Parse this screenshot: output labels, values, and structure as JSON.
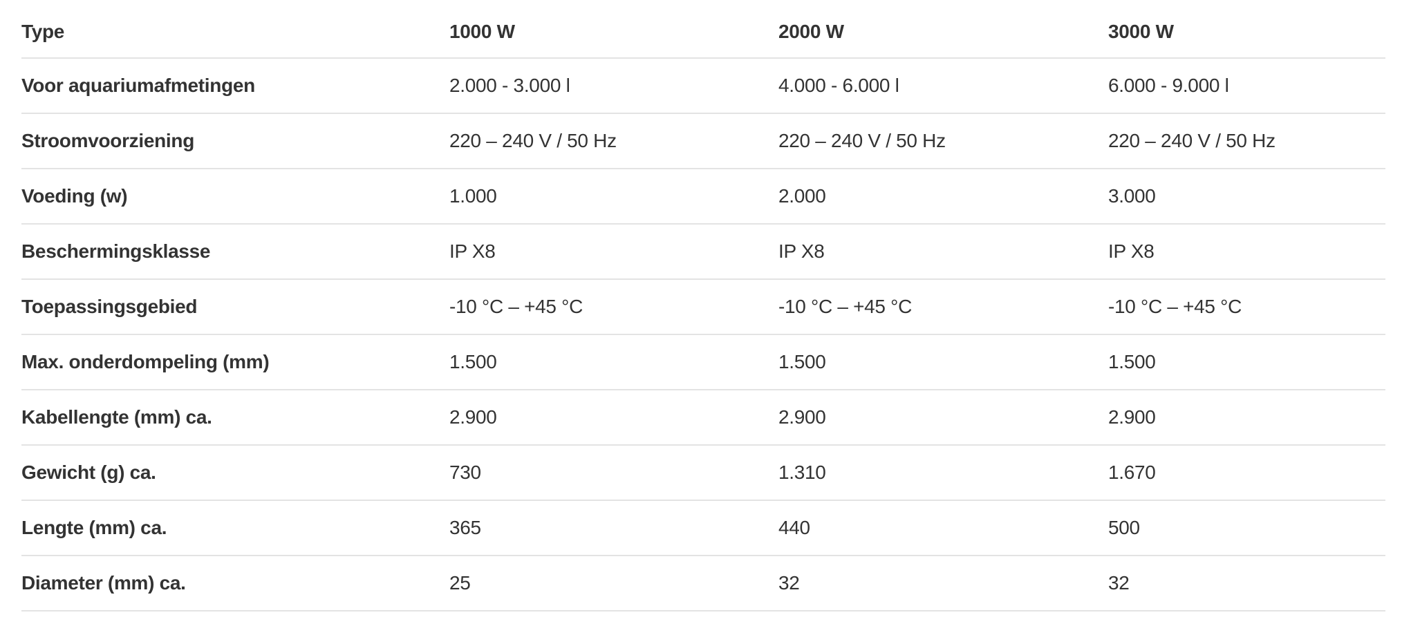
{
  "table": {
    "headers": [
      "Type",
      "1000 W",
      "2000 W",
      "3000 W"
    ],
    "rows": [
      {
        "label": "Voor aquariumafmetingen",
        "values": [
          "2.000 - 3.000 l",
          "4.000 - 6.000 l",
          "6.000 - 9.000 l"
        ]
      },
      {
        "label": "Stroomvoorziening",
        "values": [
          "220 – 240 V / 50 Hz",
          "220 – 240 V / 50 Hz",
          "220 – 240 V / 50 Hz"
        ]
      },
      {
        "label": "Voeding (w)",
        "values": [
          "1.000",
          "2.000",
          "3.000"
        ]
      },
      {
        "label": "Beschermingsklasse",
        "values": [
          "IP X8",
          "IP X8",
          "IP X8"
        ]
      },
      {
        "label": "Toepassingsgebied",
        "values": [
          "-10 °C – +45 °C",
          "-10 °C – +45 °C",
          "-10 °C – +45 °C"
        ]
      },
      {
        "label": "Max. onderdompeling (mm)",
        "values": [
          "1.500",
          "1.500",
          "1.500"
        ]
      },
      {
        "label": "Kabellengte (mm) ca.",
        "values": [
          "2.900",
          "2.900",
          "2.900"
        ]
      },
      {
        "label": "Gewicht (g) ca.",
        "values": [
          "730",
          "1.310",
          "1.670"
        ]
      },
      {
        "label": "Lengte (mm) ca.",
        "values": [
          "365",
          "440",
          "500"
        ]
      },
      {
        "label": "Diameter (mm) ca.",
        "values": [
          "25",
          "32",
          "32"
        ]
      }
    ]
  }
}
